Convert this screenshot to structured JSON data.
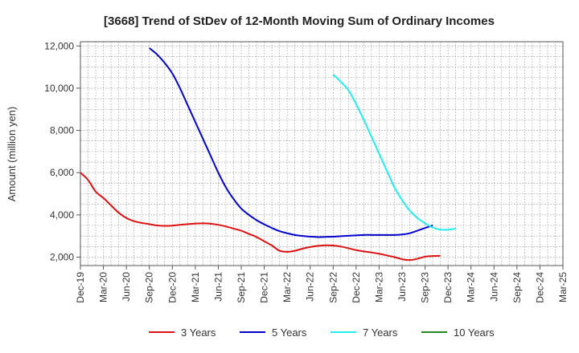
{
  "chart_data": {
    "type": "line",
    "title": "[3668]  Trend of StDev of 12-Month Moving Sum of Ordinary Incomes",
    "xlabel": "",
    "ylabel": "Amount (million yen)",
    "ylim": [
      1600,
      12200
    ],
    "yticks": [
      2000,
      4000,
      6000,
      8000,
      10000,
      12000
    ],
    "ytick_labels": [
      "2,000",
      "4,000",
      "6,000",
      "8,000",
      "10,000",
      "12,000"
    ],
    "x_tick_labels": [
      "Dec-19",
      "Mar-20",
      "Jun-20",
      "Sep-20",
      "Dec-20",
      "Mar-21",
      "Jun-21",
      "Sep-21",
      "Dec-21",
      "Mar-22",
      "Jun-22",
      "Sep-22",
      "Dec-22",
      "Mar-23",
      "Jun-23",
      "Sep-23",
      "Dec-23",
      "Mar-24",
      "Jun-24",
      "Sep-24",
      "Dec-24",
      "Mar-25"
    ],
    "grid": true,
    "legend_placement": "bottom",
    "series": [
      {
        "name": "3 Years",
        "color": "#dd1111",
        "values": [
          6000,
          5650,
          5100,
          4800,
          4450,
          4100,
          3850,
          3700,
          3620,
          3560,
          3500,
          3480,
          3490,
          3530,
          3560,
          3590,
          3600,
          3580,
          3530,
          3450,
          3350,
          3250,
          3100,
          2950,
          2750,
          2550,
          2300,
          2250,
          2300,
          2400,
          2480,
          2530,
          2560,
          2550,
          2500,
          2420,
          2330,
          2270,
          2220,
          2160,
          2080,
          2000,
          1900,
          1860,
          1920,
          2020,
          2050,
          2060
        ]
      },
      {
        "name": "5 Years",
        "start_index": 9,
        "color": "#0000cc",
        "values": [
          11900,
          11600,
          11200,
          10700,
          10000,
          9200,
          8400,
          7600,
          6800,
          6000,
          5300,
          4750,
          4300,
          4000,
          3750,
          3550,
          3380,
          3230,
          3130,
          3050,
          3000,
          2970,
          2950,
          2960,
          2970,
          2990,
          3010,
          3030,
          3050,
          3050,
          3050,
          3050,
          3050,
          3070,
          3130,
          3250,
          3380,
          3500
        ]
      },
      {
        "name": "7 Years",
        "start_index": 33,
        "color": "#22eeee",
        "values": [
          10650,
          10300,
          9900,
          9250,
          8500,
          7700,
          6900,
          6100,
          5300,
          4700,
          4200,
          3850,
          3600,
          3400,
          3300,
          3300,
          3350
        ]
      },
      {
        "name": "10 Years",
        "color": "#228822",
        "values": []
      }
    ]
  }
}
